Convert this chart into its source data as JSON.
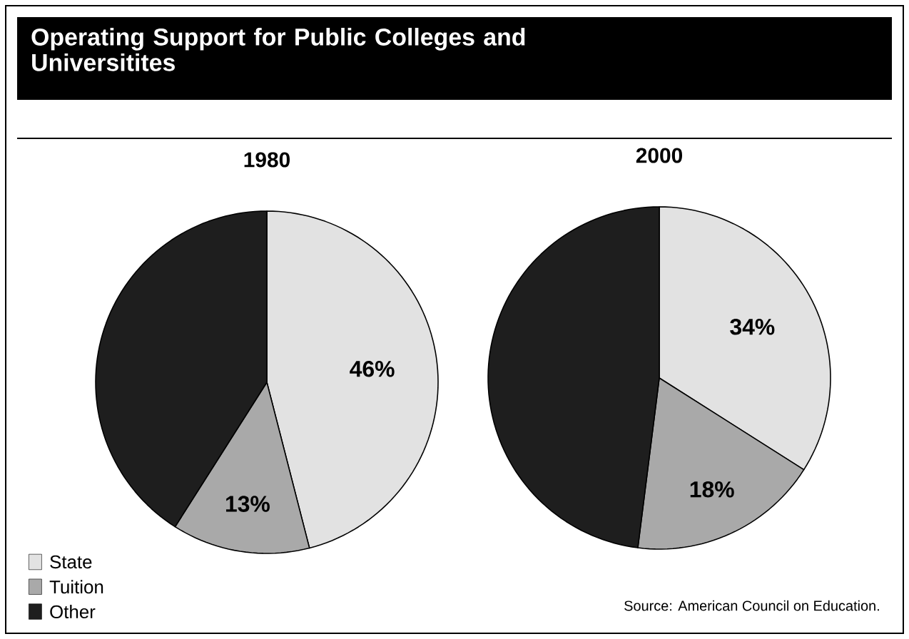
{
  "chart_data": [
    {
      "type": "pie",
      "title": "Operating Support for Public Colleges and Universitites",
      "subtitle": "1980",
      "categories": [
        "State",
        "Tuition",
        "Other"
      ],
      "values": [
        46,
        13,
        41
      ],
      "colors": [
        "#e2e2e2",
        "#a9a9a9",
        "#1e1e1e"
      ],
      "value_labels": [
        "46%",
        "13%",
        null
      ],
      "legend": "bottom left"
    },
    {
      "type": "pie",
      "subtitle": "2000",
      "values": [
        34,
        18,
        48
      ],
      "colors": [
        "#e2e2e2",
        "#a9a9a9",
        "#1e1e1e"
      ],
      "value_labels": [
        "34%",
        "18%",
        null
      ],
      "annotations": [
        "Source: American Council on Education."
      ]
    }
  ]
}
